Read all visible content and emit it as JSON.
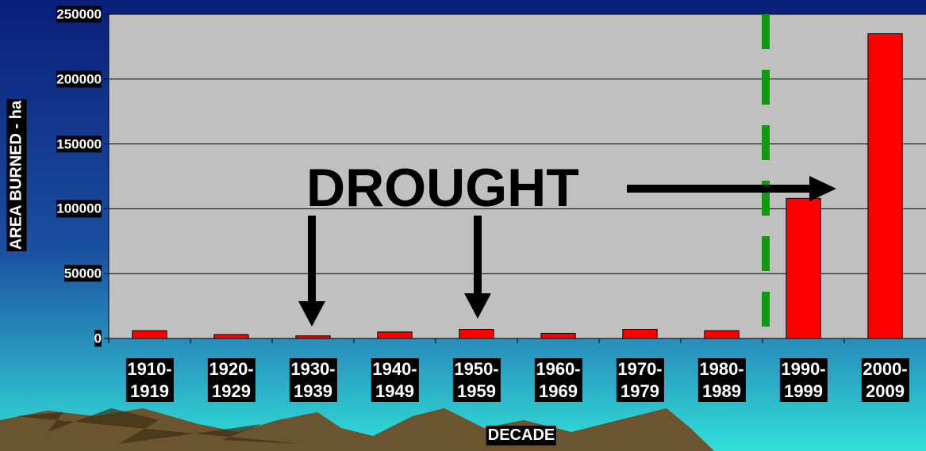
{
  "chart_data": {
    "type": "bar",
    "categories": [
      "1910-\n1919",
      "1920-\n1929",
      "1930-\n1939",
      "1940-\n1949",
      "1950-\n1959",
      "1960-\n1969",
      "1970-\n1979",
      "1980-\n1989",
      "1990-\n1999",
      "2000-\n2009"
    ],
    "values": [
      6000,
      3000,
      2000,
      5000,
      7000,
      4000,
      7000,
      6000,
      108000,
      235000
    ],
    "color": "#ff0000",
    "ylim": [
      0,
      250000
    ],
    "yticks": [
      0,
      50000,
      100000,
      150000,
      200000,
      250000
    ],
    "grid": true,
    "x_label": "DECADE",
    "y_label": "AREA BURNED - ha",
    "annotation": "DROUGHT"
  }
}
